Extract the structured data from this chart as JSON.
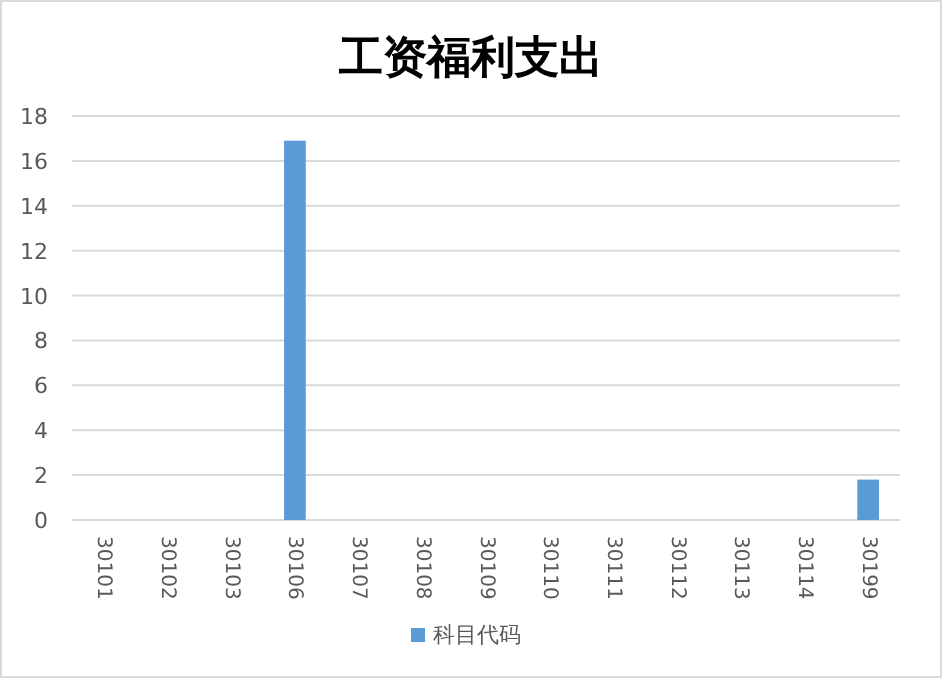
{
  "chart_data": {
    "type": "bar",
    "title": "工资福利支出",
    "categories": [
      "30101",
      "30102",
      "30103",
      "30106",
      "30107",
      "30108",
      "30109",
      "30110",
      "30111",
      "30112",
      "30113",
      "30114",
      "30199"
    ],
    "series": [
      {
        "name": "科目代码",
        "color": "#5b9bd5",
        "values": [
          0,
          0,
          0,
          16.9,
          0,
          0,
          0,
          0,
          0,
          0,
          0,
          0,
          1.8
        ]
      }
    ],
    "ylim": [
      0,
      18
    ],
    "yticks": [
      0,
      2,
      4,
      6,
      8,
      10,
      12,
      14,
      16,
      18
    ],
    "grid": "y",
    "legend": "bottom"
  }
}
